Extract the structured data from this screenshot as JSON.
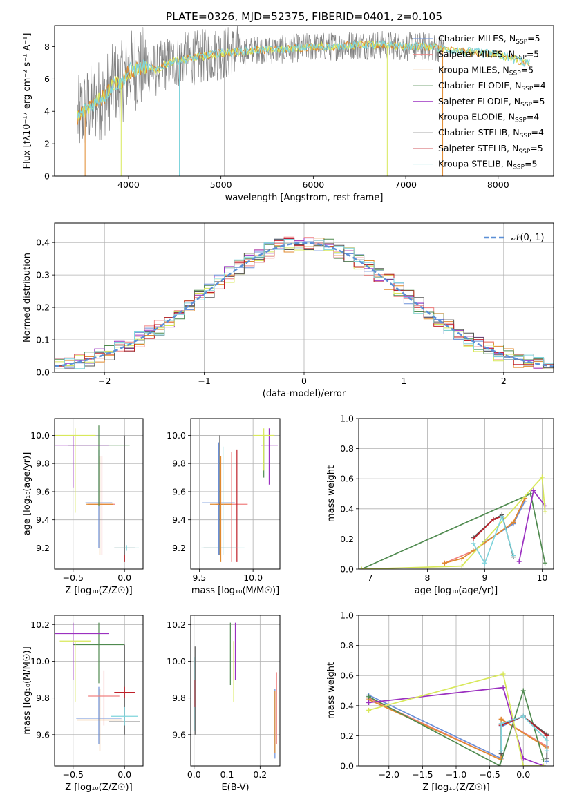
{
  "figure_title": "PLATE=0326, MJD=52375, FIBERID=0401, z=0.105",
  "models": [
    {
      "name": "Chabrier MILES",
      "color": "#6a8fd8",
      "nssp": "5"
    },
    {
      "name": "Salpeter MILES",
      "color": "#f08080",
      "nssp": "5"
    },
    {
      "name": "Kroupa MILES",
      "color": "#e08a2e",
      "nssp": "5"
    },
    {
      "name": "Chabrier ELODIE",
      "color": "#4f8a4f",
      "nssp": "4"
    },
    {
      "name": "Salpeter ELODIE",
      "color": "#9b30c0",
      "nssp": "5"
    },
    {
      "name": "Kroupa ELODIE",
      "color": "#d8e85a",
      "nssp": "4"
    },
    {
      "name": "Chabrier STELIB",
      "color": "#555555",
      "nssp": "4"
    },
    {
      "name": "Salpeter STELIB",
      "color": "#c0202a",
      "nssp": "5"
    },
    {
      "name": "Kroupa STELIB",
      "color": "#7fd4dc",
      "nssp": "5"
    }
  ],
  "chart_data": [
    {
      "id": "spectrum",
      "type": "line",
      "xlabel": "wavelength [Angstrom, rest frame]",
      "ylabel": "Flux [fλ10⁻¹⁷ erg cm⁻² s⁻¹ A⁻¹]",
      "xlim": [
        3200,
        8600
      ],
      "ylim": [
        0,
        9.3
      ],
      "xticks": [
        "4000",
        "5000",
        "6000",
        "7000",
        "8000"
      ],
      "yticks": [
        "0",
        "2",
        "4",
        "6",
        "8"
      ],
      "grid": false,
      "legend": "right",
      "x": [
        3450,
        3500,
        3550,
        3600,
        3650,
        3700,
        3750,
        3800,
        3850,
        3900,
        3950,
        4000,
        4100,
        4200,
        4300,
        4400,
        4500,
        4600,
        4700,
        4800,
        4900,
        5000,
        5200,
        5400,
        5600,
        5800,
        6000,
        6200,
        6400,
        6600,
        6800,
        7000,
        7200,
        7400,
        7600,
        7800,
        8000,
        8200,
        8350
      ],
      "y": [
        3.6,
        3.9,
        4.2,
        4.4,
        4.6,
        4.8,
        5.0,
        5.4,
        5.8,
        5.6,
        6.0,
        6.5,
        6.6,
        6.8,
        6.5,
        6.9,
        7.1,
        7.2,
        7.3,
        7.4,
        7.5,
        7.6,
        7.7,
        7.8,
        7.8,
        7.9,
        8.0,
        8.0,
        8.1,
        8.1,
        8.1,
        8.0,
        8.0,
        7.9,
        7.7,
        7.6,
        7.5,
        7.2,
        6.9
      ]
    },
    {
      "id": "residuals",
      "type": "histogram",
      "xlabel": "(data-model)/error",
      "ylabel": "Normed distribution",
      "xlim": [
        -2.5,
        2.5
      ],
      "ylim": [
        0,
        0.46
      ],
      "xticks": [
        "−2",
        "−1",
        "0",
        "1",
        "2"
      ],
      "yticks": [
        "0.0",
        "0.1",
        "0.2",
        "0.3",
        "0.4"
      ],
      "grid": true,
      "legend": "top-right",
      "reference_label": "𝒩(0, 1)",
      "bin_width": 0.1
    },
    {
      "id": "age-vs-Z",
      "type": "errorbar",
      "xlabel": "Z [log₁₀(Z/Z☉)]",
      "ylabel": "age  [log₁₀(age/yr)]",
      "xlim": [
        -0.68,
        0.18
      ],
      "ylim": [
        9.05,
        10.12
      ],
      "xticks": [
        "−0.5",
        "0.0"
      ],
      "yticks": [
        "9.2",
        "9.4",
        "9.6",
        "9.8",
        "10.0"
      ],
      "grid": true,
      "points": [
        {
          "x": -0.25,
          "y": 9.52,
          "xerr": 0.13,
          "ylo": 9.2,
          "yhi": 9.9,
          "series": "Chabrier MILES"
        },
        {
          "x": -0.22,
          "y": 9.51,
          "xerr": 0.13,
          "ylo": 9.15,
          "yhi": 9.85,
          "series": "Salpeter MILES"
        },
        {
          "x": -0.24,
          "y": 9.51,
          "xerr": 0.13,
          "ylo": 9.15,
          "yhi": 9.85,
          "series": "Kroupa MILES"
        },
        {
          "x": -0.25,
          "y": 9.93,
          "xerr": 0.3,
          "ylo": 9.5,
          "yhi": 10.07,
          "series": "Chabrier ELODIE"
        },
        {
          "x": -0.5,
          "y": 9.93,
          "xerr": 0.35,
          "ylo": 9.63,
          "yhi": 10.0,
          "series": "Salpeter ELODIE"
        },
        {
          "x": -0.48,
          "y": 10.0,
          "xerr": 0.2,
          "ylo": 9.45,
          "yhi": 10.05,
          "series": "Kroupa ELODIE"
        },
        {
          "x": 0.0,
          "y": 9.2,
          "xerr": 0.1,
          "ylo": 9.1,
          "yhi": 10.0,
          "series": "Chabrier STELIB"
        },
        {
          "x": 0.0,
          "y": 9.12,
          "xerr": 0.0,
          "ylo": 9.1,
          "yhi": 9.15,
          "series": "Salpeter STELIB"
        },
        {
          "x": 0.02,
          "y": 9.2,
          "xerr": 0.12,
          "ylo": 9.18,
          "yhi": 9.22,
          "series": "Kroupa STELIB"
        }
      ]
    },
    {
      "id": "age-vs-mass",
      "type": "errorbar",
      "xlabel": "mass [log₁₀(M/M☉)]",
      "ylabel": "",
      "xlim": [
        9.42,
        10.25
      ],
      "ylim": [
        9.05,
        10.12
      ],
      "xticks": [
        "9.5",
        "10.0"
      ],
      "yticks": [
        "9.2",
        "9.4",
        "9.6",
        "9.8",
        "10.0"
      ],
      "grid": true,
      "points": [
        {
          "x": 9.68,
          "y": 9.52,
          "xerr": 0.15,
          "ylo": 9.15,
          "yhi": 9.95,
          "series": "Chabrier MILES"
        },
        {
          "x": 9.8,
          "y": 9.51,
          "xerr": 0.15,
          "ylo": 9.1,
          "yhi": 9.88,
          "series": "Salpeter MILES"
        },
        {
          "x": 9.7,
          "y": 9.51,
          "xerr": 0.1,
          "ylo": 9.1,
          "yhi": 9.85,
          "series": "Kroupa MILES"
        },
        {
          "x": 10.1,
          "y": 9.93,
          "xerr": 0.0,
          "ylo": 9.7,
          "yhi": 10.0,
          "series": "Chabrier ELODIE"
        },
        {
          "x": 10.15,
          "y": 9.93,
          "xerr": 0.08,
          "ylo": 9.65,
          "yhi": 10.05,
          "series": "Salpeter ELODIE"
        },
        {
          "x": 10.1,
          "y": 10.0,
          "xerr": 0.1,
          "ylo": 9.75,
          "yhi": 10.05,
          "series": "Kroupa ELODIE"
        },
        {
          "x": 9.69,
          "y": 9.2,
          "xerr": 0.15,
          "ylo": 9.15,
          "yhi": 10.0,
          "series": "Chabrier STELIB"
        },
        {
          "x": 9.85,
          "y": 9.2,
          "xerr": 0.0,
          "ylo": 9.1,
          "yhi": 9.9,
          "series": "Salpeter STELIB"
        },
        {
          "x": 9.72,
          "y": 9.2,
          "xerr": 0.2,
          "ylo": 9.15,
          "yhi": 9.92,
          "series": "Kroupa STELIB"
        }
      ]
    },
    {
      "id": "weight-vs-age",
      "type": "line",
      "xlabel": "age  [log₁₀(age/yr)]",
      "ylabel": "mass weight",
      "xlim": [
        6.8,
        10.2
      ],
      "ylim": [
        0,
        1.0
      ],
      "xticks": [
        "7",
        "8",
        "9",
        "10"
      ],
      "yticks": [
        "0.0",
        "0.2",
        "0.4",
        "0.6",
        "0.8",
        "1.0"
      ],
      "grid": true,
      "series": [
        {
          "name": "Chabrier MILES",
          "x": [
            8.8,
            9.0,
            9.5,
            9.7
          ],
          "y": [
            0.12,
            0.18,
            0.3,
            0.45
          ]
        },
        {
          "name": "Salpeter MILES",
          "x": [
            8.3,
            8.8,
            9.5,
            9.7
          ],
          "y": [
            0.04,
            0.12,
            0.31,
            0.47
          ]
        },
        {
          "name": "Kroupa MILES",
          "x": [
            8.3,
            8.6,
            8.8,
            9.5,
            9.7
          ],
          "y": [
            0.04,
            0.07,
            0.12,
            0.31,
            0.47
          ]
        },
        {
          "name": "Chabrier ELODIE",
          "x": [
            6.85,
            9.8,
            10.05
          ],
          "y": [
            0.0,
            0.5,
            0.04
          ]
        },
        {
          "name": "Salpeter ELODIE",
          "x": [
            9.6,
            9.85,
            10.05
          ],
          "y": [
            0.05,
            0.52,
            0.42
          ]
        },
        {
          "name": "Kroupa ELODIE",
          "x": [
            6.85,
            8.6,
            10.0,
            10.05
          ],
          "y": [
            0.0,
            0.02,
            0.61,
            0.38
          ]
        },
        {
          "name": "Chabrier STELIB",
          "x": [
            8.8,
            9.15,
            9.3,
            9.5
          ],
          "y": [
            0.21,
            0.33,
            0.36,
            0.08
          ]
        },
        {
          "name": "Salpeter STELIB",
          "x": [
            8.8,
            9.15,
            9.3
          ],
          "y": [
            0.2,
            0.33,
            0.35
          ]
        },
        {
          "name": "Kroupa STELIB",
          "x": [
            8.8,
            9.0,
            9.3,
            9.5
          ],
          "y": [
            0.17,
            0.04,
            0.35,
            0.09
          ]
        }
      ]
    },
    {
      "id": "mass-vs-Z",
      "type": "errorbar",
      "xlabel": "Z [log₁₀(Z/Z☉)]",
      "ylabel": "mass [log₁₀(M/M☉)]",
      "xlim": [
        -0.68,
        0.18
      ],
      "ylim": [
        9.43,
        10.25
      ],
      "xticks": [
        "−0.5",
        "0.0"
      ],
      "yticks": [
        "9.6",
        "9.8",
        "10.0",
        "10.2"
      ],
      "grid": true,
      "points": [
        {
          "x": -0.25,
          "y": 9.69,
          "xerr": 0.22,
          "ylo": 9.55,
          "yhi": 9.86,
          "series": "Chabrier MILES"
        },
        {
          "x": -0.2,
          "y": 9.81,
          "xerr": 0.15,
          "ylo": 9.65,
          "yhi": 9.95,
          "series": "Salpeter MILES"
        },
        {
          "x": -0.24,
          "y": 9.68,
          "xerr": 0.22,
          "ylo": 9.51,
          "yhi": 9.85,
          "series": "Kroupa MILES"
        },
        {
          "x": -0.25,
          "y": 10.09,
          "xerr": 0.25,
          "ylo": 9.88,
          "yhi": 10.21,
          "series": "Chabrier ELODIE"
        },
        {
          "x": -0.5,
          "y": 10.15,
          "xerr": 0.35,
          "ylo": 9.9,
          "yhi": 10.21,
          "series": "Salpeter ELODIE"
        },
        {
          "x": -0.48,
          "y": 10.11,
          "xerr": 0.15,
          "ylo": 9.78,
          "yhi": 10.11,
          "series": "Kroupa ELODIE"
        },
        {
          "x": 0.0,
          "y": 9.67,
          "xerr": 0.15,
          "ylo": 9.6,
          "yhi": 10.09,
          "series": "Chabrier STELIB"
        },
        {
          "x": 0.0,
          "y": 9.83,
          "xerr": 0.1,
          "ylo": 9.8,
          "yhi": 9.86,
          "series": "Salpeter STELIB"
        },
        {
          "x": 0.0,
          "y": 9.7,
          "xerr": 0.13,
          "ylo": 9.65,
          "yhi": 9.75,
          "series": "Kroupa STELIB"
        }
      ]
    },
    {
      "id": "mass-vs-ebv",
      "type": "errorbar",
      "xlabel": "E(B-V)",
      "ylabel": "",
      "xlim": [
        -0.01,
        0.26
      ],
      "ylim": [
        9.43,
        10.25
      ],
      "xticks": [
        "0.0",
        "0.1",
        "0.2"
      ],
      "yticks": [
        "9.6",
        "9.8",
        "10.0",
        "10.2"
      ],
      "grid": true,
      "points": [
        {
          "x": 0.245,
          "y": 9.69,
          "xerr": 0.0,
          "ylo": 9.47,
          "yhi": 9.85,
          "series": "Chabrier MILES"
        },
        {
          "x": 0.25,
          "y": 9.81,
          "xerr": 0.0,
          "ylo": 9.55,
          "yhi": 9.94,
          "series": "Salpeter MILES"
        },
        {
          "x": 0.245,
          "y": 9.68,
          "xerr": 0.0,
          "ylo": 9.5,
          "yhi": 9.84,
          "series": "Kroupa MILES"
        },
        {
          "x": 0.11,
          "y": 10.09,
          "xerr": 0.0,
          "ylo": 9.87,
          "yhi": 10.21,
          "series": "Chabrier ELODIE"
        },
        {
          "x": 0.125,
          "y": 10.15,
          "xerr": 0.0,
          "ylo": 9.9,
          "yhi": 10.21,
          "series": "Salpeter ELODIE"
        },
        {
          "x": 0.12,
          "y": 10.11,
          "xerr": 0.0,
          "ylo": 9.78,
          "yhi": 10.11,
          "series": "Kroupa ELODIE"
        },
        {
          "x": 0.003,
          "y": 9.67,
          "xerr": 0.0,
          "ylo": 9.6,
          "yhi": 10.08,
          "series": "Chabrier STELIB"
        },
        {
          "x": 0.002,
          "y": 9.83,
          "xerr": 0.0,
          "ylo": 9.75,
          "yhi": 9.9,
          "series": "Salpeter STELIB"
        },
        {
          "x": 0.0,
          "y": 9.7,
          "xerr": 0.0,
          "ylo": 9.62,
          "yhi": 10.02,
          "series": "Kroupa STELIB"
        }
      ]
    },
    {
      "id": "weight-vs-Z",
      "type": "line",
      "xlabel": "Z [log₁₀(Z/Z☉)]",
      "ylabel": "mass weight",
      "xlim": [
        -2.45,
        0.45
      ],
      "ylim": [
        0,
        1.0
      ],
      "xticks": [
        "−2.0",
        "−1.5",
        "−1.0",
        "−0.5",
        "0.0"
      ],
      "yticks": [
        "0.0",
        "0.2",
        "0.4",
        "0.6",
        "0.8",
        "1.0"
      ],
      "grid": true,
      "series": [
        {
          "name": "Chabrier MILES",
          "x": [
            -2.3,
            -0.33,
            -0.33,
            0.0,
            0.35,
            0.35
          ],
          "y": [
            0.47,
            0.05,
            0.26,
            0.33,
            0.2,
            0.03
          ]
        },
        {
          "name": "Salpeter MILES",
          "x": [
            -2.3,
            -0.33,
            -0.33,
            0.35
          ],
          "y": [
            0.45,
            0.04,
            0.31,
            0.13
          ]
        },
        {
          "name": "Kroupa MILES",
          "x": [
            -2.3,
            -0.33,
            -0.33,
            0.35
          ],
          "y": [
            0.44,
            0.04,
            0.31,
            0.12
          ]
        },
        {
          "name": "Chabrier ELODIE",
          "x": [
            -2.3,
            -0.35,
            0.0,
            0.3
          ],
          "y": [
            0.46,
            0.0,
            0.5,
            0.04
          ]
        },
        {
          "name": "Salpeter ELODIE",
          "x": [
            -2.3,
            -0.3,
            0.0,
            0.3
          ],
          "y": [
            0.42,
            0.52,
            0.05,
            0.0
          ]
        },
        {
          "name": "Kroupa ELODIE",
          "x": [
            -2.3,
            -0.3,
            0.0,
            0.3
          ],
          "y": [
            0.37,
            0.61,
            0.0,
            0.0
          ]
        },
        {
          "name": "Chabrier STELIB",
          "x": [
            -0.33,
            -0.33,
            0.0,
            0.35,
            0.35
          ],
          "y": [
            0.08,
            0.27,
            0.33,
            0.21,
            0.05
          ]
        },
        {
          "name": "Salpeter STELIB",
          "x": [
            -0.33,
            0.0,
            0.35
          ],
          "y": [
            0.27,
            0.33,
            0.2
          ]
        },
        {
          "name": "Kroupa STELIB",
          "x": [
            -0.33,
            -0.33,
            0.0,
            0.35,
            0.35
          ],
          "y": [
            0.1,
            0.28,
            0.33,
            0.17,
            0.1
          ]
        }
      ]
    }
  ]
}
